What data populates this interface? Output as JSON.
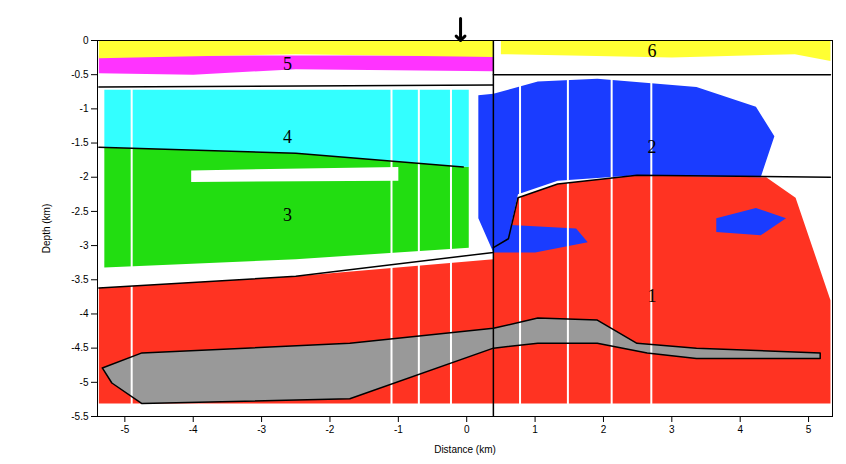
{
  "chart_data": {
    "type": "section",
    "x_label": "Distance (km)",
    "y_label": "Depth (km)",
    "xlim": [
      -5.4,
      5.35
    ],
    "ylim": [
      -5.5,
      0
    ],
    "xticks": [
      -5,
      -4,
      -3,
      -2,
      -1,
      0,
      1,
      2,
      3,
      4,
      5
    ],
    "yticks": [
      0,
      -0.5,
      -1,
      -1.5,
      -2,
      -2.5,
      -3,
      -3.5,
      -4,
      -4.5,
      -5,
      -5.5
    ],
    "regions": [
      {
        "name": "1",
        "color": "#ff3322",
        "label_at": [
          2.71,
          -3.74
        ],
        "polygons": [
          [
            [
              -5.38,
              -3.62
            ],
            [
              -2.5,
              -3.45
            ],
            [
              0.39,
              -3.2
            ],
            [
              0.39,
              -5.31
            ],
            [
              -5.38,
              -5.31
            ]
          ],
          [
            [
              0.39,
              -3.03
            ],
            [
              0.61,
              -2.9
            ],
            [
              0.75,
              -2.3
            ],
            [
              1.33,
              -2.1
            ],
            [
              2.49,
              -1.97
            ],
            [
              4.38,
              -2.0
            ],
            [
              4.81,
              -2.3
            ],
            [
              5.32,
              -3.8
            ],
            [
              5.32,
              -5.31
            ],
            [
              0.39,
              -5.31
            ]
          ]
        ]
      },
      {
        "name": "3",
        "color": "#22dd11",
        "label_at": [
          -2.62,
          -2.56
        ],
        "polygons": [
          [
            [
              -5.3,
              -1.56
            ],
            [
              -2.5,
              -1.65
            ],
            [
              0.03,
              -1.85
            ],
            [
              0.03,
              -3.03
            ],
            [
              -2.5,
              -3.2
            ],
            [
              -5.3,
              -3.32
            ]
          ]
        ]
      },
      {
        "color": "#ffffff",
        "polygons": [
          [
            [
              -4.03,
              -1.9
            ],
            [
              -1.0,
              -1.85
            ],
            [
              -1.0,
              -2.05
            ],
            [
              -4.03,
              -2.07
            ]
          ]
        ]
      },
      {
        "name": "4",
        "color": "#33ffff",
        "label_at": [
          -2.62,
          -1.41
        ],
        "polygons": [
          [
            [
              -5.3,
              -0.72
            ],
            [
              0.03,
              -0.72
            ],
            [
              0.03,
              -1.85
            ],
            [
              -2.5,
              -1.65
            ],
            [
              -5.3,
              -1.56
            ]
          ]
        ]
      },
      {
        "name": "2",
        "color": "#1a3cff",
        "label_at": [
          2.71,
          -1.56
        ],
        "polygons": [
          [
            [
              0.17,
              -0.8
            ],
            [
              0.39,
              -0.78
            ],
            [
              1.04,
              -0.6
            ],
            [
              1.91,
              -0.56
            ],
            [
              3.36,
              -0.68
            ],
            [
              4.23,
              -0.97
            ],
            [
              4.5,
              -1.4
            ],
            [
              4.3,
              -2.0
            ],
            [
              2.49,
              -1.97
            ],
            [
              1.33,
              -2.05
            ],
            [
              0.75,
              -2.25
            ],
            [
              0.65,
              -2.7
            ],
            [
              1.6,
              -2.75
            ],
            [
              1.77,
              -2.95
            ],
            [
              1.0,
              -3.1
            ],
            [
              0.39,
              -3.1
            ],
            [
              0.17,
              -2.6
            ]
          ],
          [
            [
              3.65,
              -2.6
            ],
            [
              4.23,
              -2.45
            ],
            [
              4.67,
              -2.6
            ],
            [
              4.3,
              -2.85
            ],
            [
              3.65,
              -2.8
            ]
          ]
        ]
      },
      {
        "color": "#999999",
        "polygons": [
          [
            [
              -5.33,
              -4.79
            ],
            [
              -4.75,
              -4.57
            ],
            [
              -1.71,
              -4.43
            ],
            [
              0.39,
              -4.21
            ],
            [
              1.04,
              -4.06
            ],
            [
              1.91,
              -4.09
            ],
            [
              2.49,
              -4.43
            ],
            [
              3.36,
              -4.5
            ],
            [
              5.17,
              -4.57
            ],
            [
              5.17,
              -4.65
            ],
            [
              3.36,
              -4.65
            ],
            [
              2.64,
              -4.57
            ],
            [
              1.91,
              -4.43
            ],
            [
              1.04,
              -4.43
            ],
            [
              0.39,
              -4.5
            ],
            [
              -1.71,
              -5.24
            ],
            [
              -4.75,
              -5.31
            ],
            [
              -5.19,
              -5.01
            ]
          ]
        ]
      },
      {
        "name": "5",
        "color": "#ff33ff",
        "label_at": [
          -2.62,
          -0.35
        ],
        "polygons": [
          [
            [
              -5.38,
              -0.22
            ],
            [
              0.39,
              -0.22
            ],
            [
              0.39,
              -0.45
            ],
            [
              -2.5,
              -0.42
            ],
            [
              -4.0,
              -0.5
            ],
            [
              -5.38,
              -0.48
            ]
          ]
        ]
      },
      {
        "color": "#ffff33",
        "polygons": [
          [
            [
              -5.38,
              0
            ],
            [
              0.39,
              0
            ],
            [
              0.39,
              -0.24
            ],
            [
              -2.5,
              -0.2
            ],
            [
              -5.38,
              -0.26
            ]
          ]
        ]
      },
      {
        "name": "6",
        "color": "#ffff33",
        "label_at": [
          2.71,
          -0.16
        ],
        "polygons": [
          [
            [
              0.5,
              0
            ],
            [
              5.32,
              0
            ],
            [
              5.32,
              -0.3
            ],
            [
              4.8,
              -0.2
            ],
            [
              3.0,
              -0.25
            ],
            [
              0.5,
              -0.2
            ]
          ]
        ]
      }
    ],
    "stations": [
      -4.9,
      -1.1,
      -0.7,
      -0.23,
      0.78,
      1.48,
      2.12,
      2.7
    ],
    "boundaries": [
      [
        [
          -5.38,
          -0.68
        ],
        [
          0.39,
          -0.65
        ]
      ],
      [
        [
          -5.38,
          -1.56
        ],
        [
          -2.5,
          -1.65
        ],
        [
          -0.05,
          -1.85
        ]
      ],
      [
        [
          -5.38,
          -3.62
        ],
        [
          -2.5,
          -3.45
        ],
        [
          0.39,
          -3.1
        ]
      ],
      [
        [
          0.39,
          -3.03
        ],
        [
          0.61,
          -2.9
        ],
        [
          0.75,
          -2.3
        ],
        [
          1.33,
          -2.1
        ],
        [
          2.49,
          -1.97
        ],
        [
          5.32,
          -2.0
        ]
      ],
      [
        [
          0.39,
          -0.5
        ],
        [
          5.32,
          -0.5
        ]
      ],
      [
        [
          0.39,
          0
        ],
        [
          0.39,
          -5.5
        ]
      ],
      [
        [
          -5.33,
          -4.79
        ],
        [
          -4.75,
          -4.57
        ],
        [
          -1.71,
          -4.43
        ],
        [
          0.39,
          -4.21
        ],
        [
          1.04,
          -4.06
        ],
        [
          1.91,
          -4.09
        ],
        [
          2.49,
          -4.43
        ],
        [
          3.36,
          -4.5
        ],
        [
          5.17,
          -4.57
        ],
        [
          5.17,
          -4.65
        ],
        [
          3.36,
          -4.65
        ],
        [
          2.64,
          -4.57
        ],
        [
          1.91,
          -4.43
        ],
        [
          1.04,
          -4.43
        ],
        [
          0.39,
          -4.5
        ],
        [
          -1.71,
          -5.24
        ],
        [
          -4.75,
          -5.31
        ],
        [
          -5.19,
          -5.01
        ],
        [
          -5.33,
          -4.79
        ]
      ]
    ],
    "arrow_at": -0.09
  }
}
